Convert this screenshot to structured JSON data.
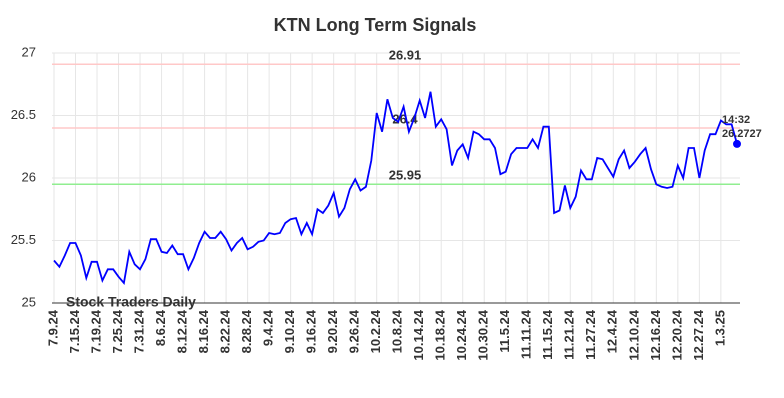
{
  "chart_data": {
    "type": "line",
    "title": "KTN Long Term Signals",
    "categories": [
      "7.9.24",
      null,
      null,
      null,
      "7.15.24",
      null,
      null,
      null,
      "7.19.24",
      null,
      null,
      null,
      "7.25.24",
      null,
      null,
      null,
      "7.31.24",
      null,
      null,
      null,
      "8.6.24",
      null,
      null,
      null,
      "8.12.24",
      null,
      null,
      null,
      "8.16.24",
      null,
      null,
      null,
      "8.22.24",
      null,
      null,
      null,
      "8.28.24",
      null,
      null,
      null,
      "9.4.24",
      null,
      null,
      null,
      "9.10.24",
      null,
      null,
      null,
      "9.16.24",
      null,
      null,
      null,
      "9.20.24",
      null,
      null,
      null,
      "9.26.24",
      null,
      null,
      null,
      "10.2.24",
      null,
      null,
      null,
      "10.8.24",
      null,
      null,
      null,
      "10.14.24",
      null,
      null,
      null,
      "10.18.24",
      null,
      null,
      null,
      "10.24.24",
      null,
      null,
      null,
      "10.30.24",
      null,
      null,
      null,
      "11.5.24",
      null,
      null,
      null,
      "11.11.24",
      null,
      null,
      null,
      "11.15.24",
      null,
      null,
      null,
      "11.21.24",
      null,
      null,
      null,
      "11.27.24",
      null,
      null,
      null,
      "12.4.24",
      null,
      null,
      null,
      "12.10.24",
      null,
      null,
      null,
      "12.16.24",
      null,
      null,
      null,
      "12.20.24",
      null,
      null,
      null,
      "12.27.24",
      null,
      null,
      null,
      "1.3.25",
      null,
      null,
      null
    ],
    "values": [
      25.34,
      25.29,
      25.38,
      25.48,
      25.48,
      25.38,
      25.2,
      25.33,
      25.33,
      25.18,
      25.27,
      25.27,
      25.21,
      25.16,
      25.41,
      25.31,
      25.27,
      25.35,
      25.51,
      25.51,
      25.41,
      25.4,
      25.46,
      25.39,
      25.39,
      25.27,
      25.36,
      25.48,
      25.57,
      25.52,
      25.52,
      25.57,
      25.51,
      25.42,
      25.48,
      25.52,
      25.43,
      25.45,
      25.49,
      25.5,
      25.56,
      25.55,
      25.56,
      25.64,
      25.67,
      25.68,
      25.55,
      25.64,
      25.55,
      25.75,
      25.72,
      25.78,
      25.88,
      25.69,
      25.76,
      25.91,
      25.99,
      25.9,
      25.93,
      26.14,
      26.52,
      26.37,
      26.63,
      26.48,
      26.45,
      26.57,
      26.37,
      26.48,
      26.62,
      26.48,
      26.69,
      26.41,
      26.47,
      26.39,
      26.1,
      26.22,
      26.27,
      26.16,
      26.37,
      26.35,
      26.31,
      26.31,
      26.24,
      26.03,
      26.05,
      26.19,
      26.24,
      26.24,
      26.24,
      26.31,
      26.24,
      26.41,
      26.41,
      25.72,
      25.74,
      25.94,
      25.76,
      25.85,
      26.06,
      25.99,
      25.99,
      26.16,
      26.15,
      26.08,
      26.01,
      26.15,
      26.22,
      26.08,
      26.13,
      26.19,
      26.24,
      26.07,
      25.95,
      25.93,
      25.92,
      25.93,
      26.1,
      26.0,
      26.24,
      26.24,
      26.0,
      26.22,
      26.35,
      26.35,
      26.46,
      26.43,
      26.43,
      26.2727
    ],
    "color": "#0000ff",
    "ylim": [
      25,
      27
    ],
    "yticks": [
      25,
      25.5,
      26,
      26.5,
      27
    ],
    "grid": true,
    "hlines": [
      {
        "value": 26.91,
        "color": "#ffc8c8",
        "text_color": "#8b0000"
      },
      {
        "value": 26.4,
        "color": "#ffc8c8",
        "text_color": "#cc0000"
      },
      {
        "value": 25.95,
        "color": "#90ee90",
        "text_color": "#006400"
      }
    ],
    "last_time": "14:32",
    "last_value_color": "#0000ff",
    "watermark": "Stock Traders Daily"
  }
}
